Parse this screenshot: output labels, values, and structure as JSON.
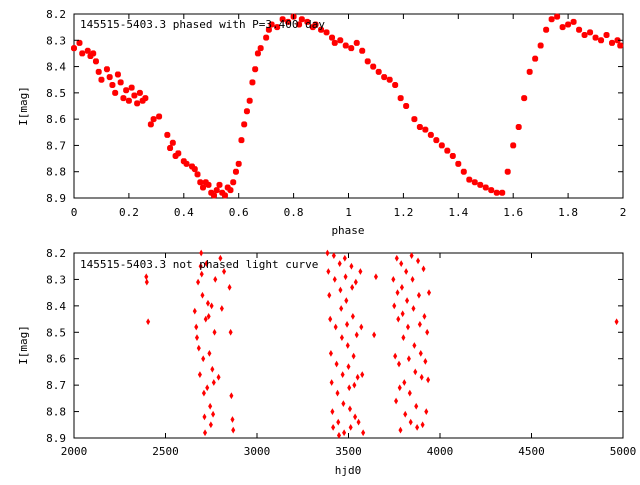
{
  "chart_data": [
    {
      "type": "scatter",
      "title": "145515-5403.3 phased with P=3.400 day",
      "xlabel": "phase",
      "ylabel": "I[mag]",
      "xlim": [
        0,
        2
      ],
      "ylim": [
        8.9,
        8.2
      ],
      "y_inverted": true,
      "x_ticks": [
        "0",
        "0.2",
        "0.4",
        "0.6",
        "0.8",
        "1",
        "1.2",
        "1.4",
        "1.6",
        "1.8",
        "2"
      ],
      "y_ticks": [
        "8.2",
        "8.3",
        "8.4",
        "8.5",
        "8.6",
        "8.7",
        "8.8",
        "8.9"
      ],
      "marker_color": "#ff0000",
      "marker": "star",
      "series": [
        {
          "points": [
            [
              0.0,
              8.33
            ],
            [
              0.02,
              8.31
            ],
            [
              0.03,
              8.35
            ],
            [
              0.05,
              8.34
            ],
            [
              0.06,
              8.36
            ],
            [
              0.07,
              8.35
            ],
            [
              0.08,
              8.38
            ],
            [
              0.09,
              8.42
            ],
            [
              0.1,
              8.45
            ],
            [
              0.12,
              8.41
            ],
            [
              0.13,
              8.44
            ],
            [
              0.14,
              8.47
            ],
            [
              0.15,
              8.5
            ],
            [
              0.16,
              8.43
            ],
            [
              0.17,
              8.46
            ],
            [
              0.18,
              8.52
            ],
            [
              0.19,
              8.49
            ],
            [
              0.2,
              8.53
            ],
            [
              0.21,
              8.48
            ],
            [
              0.22,
              8.51
            ],
            [
              0.23,
              8.54
            ],
            [
              0.24,
              8.5
            ],
            [
              0.25,
              8.53
            ],
            [
              0.26,
              8.52
            ],
            [
              0.28,
              8.62
            ],
            [
              0.29,
              8.6
            ],
            [
              0.31,
              8.59
            ],
            [
              0.34,
              8.66
            ],
            [
              0.35,
              8.71
            ],
            [
              0.36,
              8.69
            ],
            [
              0.37,
              8.74
            ],
            [
              0.38,
              8.73
            ],
            [
              0.4,
              8.76
            ],
            [
              0.41,
              8.77
            ],
            [
              0.43,
              8.78
            ],
            [
              0.44,
              8.79
            ],
            [
              0.45,
              8.81
            ],
            [
              0.46,
              8.84
            ],
            [
              0.47,
              8.86
            ],
            [
              0.48,
              8.84
            ],
            [
              0.49,
              8.85
            ],
            [
              0.5,
              8.88
            ],
            [
              0.51,
              8.89
            ],
            [
              0.52,
              8.87
            ],
            [
              0.53,
              8.85
            ],
            [
              0.54,
              8.88
            ],
            [
              0.55,
              8.89
            ],
            [
              0.56,
              8.86
            ],
            [
              0.57,
              8.87
            ],
            [
              0.58,
              8.84
            ],
            [
              0.59,
              8.8
            ],
            [
              0.6,
              8.77
            ],
            [
              0.61,
              8.68
            ],
            [
              0.62,
              8.62
            ],
            [
              0.63,
              8.57
            ],
            [
              0.64,
              8.53
            ],
            [
              0.65,
              8.46
            ],
            [
              0.66,
              8.41
            ],
            [
              0.67,
              8.35
            ],
            [
              0.68,
              8.33
            ],
            [
              0.7,
              8.29
            ],
            [
              0.71,
              8.26
            ],
            [
              0.72,
              8.24
            ],
            [
              0.74,
              8.25
            ],
            [
              0.76,
              8.22
            ],
            [
              0.78,
              8.23
            ],
            [
              0.8,
              8.21
            ],
            [
              0.82,
              8.24
            ],
            [
              0.83,
              8.22
            ],
            [
              0.85,
              8.23
            ],
            [
              0.87,
              8.25
            ],
            [
              0.88,
              8.24
            ],
            [
              0.9,
              8.26
            ],
            [
              0.92,
              8.27
            ],
            [
              0.94,
              8.29
            ],
            [
              0.95,
              8.31
            ],
            [
              0.97,
              8.3
            ],
            [
              0.99,
              8.32
            ],
            [
              1.01,
              8.33
            ],
            [
              1.03,
              8.31
            ],
            [
              1.05,
              8.34
            ],
            [
              1.07,
              8.38
            ],
            [
              1.09,
              8.4
            ],
            [
              1.11,
              8.42
            ],
            [
              1.13,
              8.44
            ],
            [
              1.15,
              8.45
            ],
            [
              1.17,
              8.47
            ],
            [
              1.19,
              8.52
            ],
            [
              1.21,
              8.55
            ],
            [
              1.24,
              8.6
            ],
            [
              1.26,
              8.63
            ],
            [
              1.28,
              8.64
            ],
            [
              1.3,
              8.66
            ],
            [
              1.32,
              8.68
            ],
            [
              1.34,
              8.7
            ],
            [
              1.36,
              8.72
            ],
            [
              1.38,
              8.74
            ],
            [
              1.4,
              8.77
            ],
            [
              1.42,
              8.8
            ],
            [
              1.44,
              8.83
            ],
            [
              1.46,
              8.84
            ],
            [
              1.48,
              8.85
            ],
            [
              1.5,
              8.86
            ],
            [
              1.52,
              8.87
            ],
            [
              1.54,
              8.88
            ],
            [
              1.56,
              8.88
            ],
            [
              1.58,
              8.8
            ],
            [
              1.6,
              8.7
            ],
            [
              1.62,
              8.63
            ],
            [
              1.64,
              8.52
            ],
            [
              1.66,
              8.42
            ],
            [
              1.68,
              8.37
            ],
            [
              1.7,
              8.32
            ],
            [
              1.72,
              8.26
            ],
            [
              1.74,
              8.22
            ],
            [
              1.76,
              8.21
            ],
            [
              1.78,
              8.25
            ],
            [
              1.8,
              8.24
            ],
            [
              1.82,
              8.23
            ],
            [
              1.84,
              8.26
            ],
            [
              1.86,
              8.28
            ],
            [
              1.88,
              8.27
            ],
            [
              1.9,
              8.29
            ],
            [
              1.92,
              8.3
            ],
            [
              1.94,
              8.28
            ],
            [
              1.96,
              8.31
            ],
            [
              1.98,
              8.3
            ],
            [
              1.99,
              8.32
            ]
          ]
        }
      ]
    },
    {
      "type": "scatter",
      "title": "145515-5403.3 not phased light curve",
      "xlabel": "hjd0",
      "ylabel": "I[mag]",
      "xlim": [
        2000,
        5000
      ],
      "ylim": [
        8.9,
        8.2
      ],
      "y_inverted": true,
      "x_ticks": [
        "2000",
        "2500",
        "3000",
        "3500",
        "4000",
        "4500",
        "5000"
      ],
      "y_ticks": [
        "8.2",
        "8.3",
        "8.4",
        "8.5",
        "8.6",
        "8.7",
        "8.8",
        "8.9"
      ],
      "marker_color": "#ff0000",
      "marker": "diamond",
      "series": [
        {
          "points": [
            [
              2395,
              8.29
            ],
            [
              2398,
              8.31
            ],
            [
              2405,
              8.46
            ],
            [
              2660,
              8.42
            ],
            [
              2668,
              8.48
            ],
            [
              2672,
              8.52
            ],
            [
              2678,
              8.31
            ],
            [
              2682,
              8.56
            ],
            [
              2688,
              8.66
            ],
            [
              2692,
              8.25
            ],
            [
              2695,
              8.2
            ],
            [
              2698,
              8.28
            ],
            [
              2702,
              8.36
            ],
            [
              2706,
              8.6
            ],
            [
              2710,
              8.73
            ],
            [
              2713,
              8.82
            ],
            [
              2716,
              8.88
            ],
            [
              2720,
              8.45
            ],
            [
              2724,
              8.24
            ],
            [
              2728,
              8.71
            ],
            [
              2732,
              8.39
            ],
            [
              2736,
              8.44
            ],
            [
              2740,
              8.58
            ],
            [
              2744,
              8.78
            ],
            [
              2748,
              8.85
            ],
            [
              2752,
              8.4
            ],
            [
              2756,
              8.64
            ],
            [
              2760,
              8.81
            ],
            [
              2764,
              8.69
            ],
            [
              2768,
              8.5
            ],
            [
              2772,
              8.3
            ],
            [
              2790,
              8.67
            ],
            [
              2800,
              8.22
            ],
            [
              2808,
              8.41
            ],
            [
              2820,
              8.27
            ],
            [
              2850,
              8.33
            ],
            [
              2856,
              8.5
            ],
            [
              2860,
              8.74
            ],
            [
              2866,
              8.83
            ],
            [
              2870,
              8.87
            ],
            [
              3385,
              8.2
            ],
            [
              3390,
              8.27
            ],
            [
              3395,
              8.36
            ],
            [
              3400,
              8.45
            ],
            [
              3404,
              8.58
            ],
            [
              3408,
              8.69
            ],
            [
              3412,
              8.8
            ],
            [
              3416,
              8.86
            ],
            [
              3420,
              8.21
            ],
            [
              3425,
              8.3
            ],
            [
              3430,
              8.48
            ],
            [
              3435,
              8.62
            ],
            [
              3440,
              8.73
            ],
            [
              3444,
              8.84
            ],
            [
              3448,
              8.89
            ],
            [
              3452,
              8.24
            ],
            [
              3456,
              8.34
            ],
            [
              3460,
              8.41
            ],
            [
              3464,
              8.52
            ],
            [
              3468,
              8.66
            ],
            [
              3472,
              8.77
            ],
            [
              3476,
              8.88
            ],
            [
              3480,
              8.22
            ],
            [
              3484,
              8.29
            ],
            [
              3488,
              8.38
            ],
            [
              3492,
              8.47
            ],
            [
              3496,
              8.55
            ],
            [
              3500,
              8.63
            ],
            [
              3504,
              8.71
            ],
            [
              3508,
              8.79
            ],
            [
              3512,
              8.86
            ],
            [
              3516,
              8.25
            ],
            [
              3520,
              8.33
            ],
            [
              3524,
              8.44
            ],
            [
              3528,
              8.59
            ],
            [
              3532,
              8.7
            ],
            [
              3536,
              8.82
            ],
            [
              3540,
              8.31
            ],
            [
              3545,
              8.51
            ],
            [
              3550,
              8.67
            ],
            [
              3555,
              8.84
            ],
            [
              3565,
              8.27
            ],
            [
              3570,
              8.48
            ],
            [
              3575,
              8.66
            ],
            [
              3580,
              8.88
            ],
            [
              3640,
              8.51
            ],
            [
              3650,
              8.29
            ],
            [
              3745,
              8.3
            ],
            [
              3750,
              8.4
            ],
            [
              3755,
              8.59
            ],
            [
              3760,
              8.76
            ],
            [
              3764,
              8.22
            ],
            [
              3768,
              8.35
            ],
            [
              3772,
              8.45
            ],
            [
              3776,
              8.62
            ],
            [
              3780,
              8.71
            ],
            [
              3784,
              8.87
            ],
            [
              3788,
              8.24
            ],
            [
              3792,
              8.33
            ],
            [
              3796,
              8.43
            ],
            [
              3800,
              8.52
            ],
            [
              3805,
              8.69
            ],
            [
              3810,
              8.81
            ],
            [
              3815,
              8.27
            ],
            [
              3820,
              8.38
            ],
            [
              3825,
              8.48
            ],
            [
              3830,
              8.6
            ],
            [
              3835,
              8.73
            ],
            [
              3840,
              8.84
            ],
            [
              3845,
              8.21
            ],
            [
              3850,
              8.3
            ],
            [
              3855,
              8.41
            ],
            [
              3860,
              8.55
            ],
            [
              3865,
              8.65
            ],
            [
              3870,
              8.78
            ],
            [
              3875,
              8.86
            ],
            [
              3880,
              8.23
            ],
            [
              3885,
              8.36
            ],
            [
              3890,
              8.47
            ],
            [
              3895,
              8.58
            ],
            [
              3900,
              8.67
            ],
            [
              3905,
              8.85
            ],
            [
              3910,
              8.26
            ],
            [
              3915,
              8.44
            ],
            [
              3920,
              8.61
            ],
            [
              3925,
              8.8
            ],
            [
              3930,
              8.5
            ],
            [
              3935,
              8.68
            ],
            [
              3940,
              8.35
            ],
            [
              4965,
              8.46
            ]
          ]
        }
      ]
    }
  ]
}
